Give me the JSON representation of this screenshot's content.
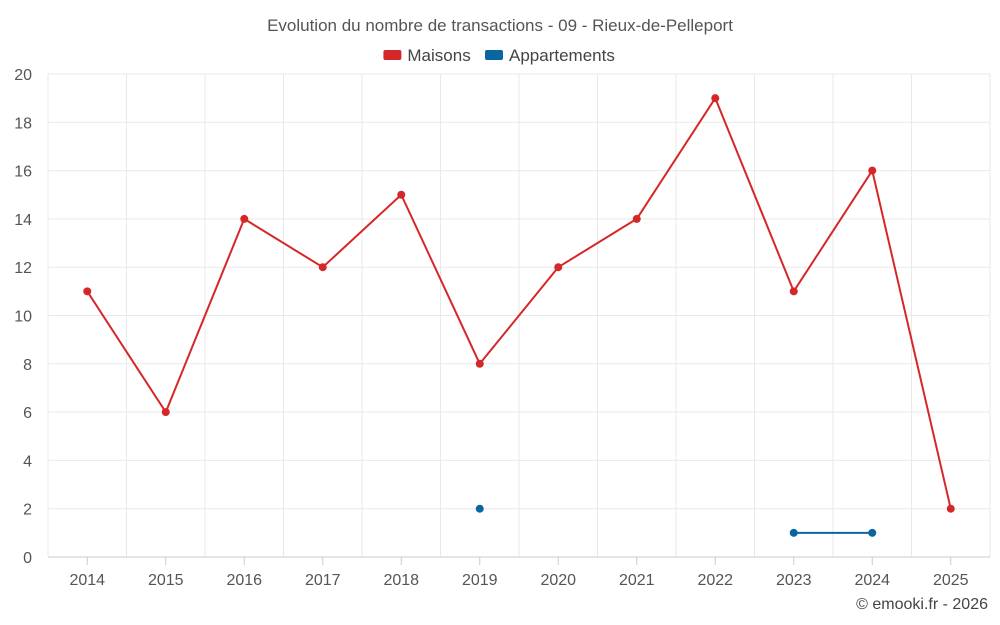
{
  "chart_data": {
    "type": "line",
    "title": "Evolution du nombre de transactions - 09 - Rieux-de-Pelleport",
    "categories": [
      "2014",
      "2015",
      "2016",
      "2017",
      "2018",
      "2019",
      "2020",
      "2021",
      "2022",
      "2023",
      "2024",
      "2025"
    ],
    "series": [
      {
        "name": "Maisons",
        "color": "#d62728",
        "values": [
          11,
          6,
          14,
          12,
          15,
          8,
          12,
          14,
          19,
          11,
          16,
          2
        ]
      },
      {
        "name": "Appartements",
        "color": "#0a66a0",
        "values": [
          null,
          null,
          null,
          null,
          null,
          2,
          null,
          null,
          null,
          1,
          1,
          null
        ]
      }
    ],
    "ylim": [
      0,
      20
    ],
    "yticks": [
      0,
      2,
      4,
      6,
      8,
      10,
      12,
      14,
      16,
      18,
      20
    ],
    "xlabel": "",
    "ylabel": "",
    "grid": true,
    "legend_position": "top-center"
  },
  "credit": "© emooki.fr - 2026"
}
